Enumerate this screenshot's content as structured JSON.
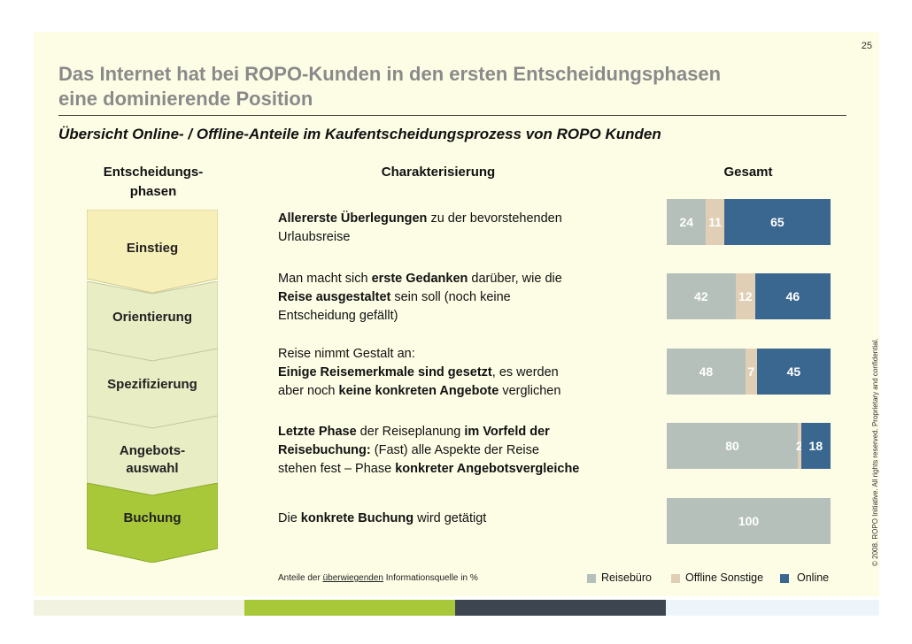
{
  "page_number": "25",
  "title_line1": "Das Internet hat bei ROPO-Kunden in den ersten Entscheidungsphasen",
  "title_line2": "eine dominierende Position",
  "subtitle": "Übersicht Online- / Offline-Anteile im Kaufentscheidungsprozess von ROPO Kunden",
  "headers": {
    "phases_line1": "Entscheidungs-",
    "phases_line2": "phasen",
    "characterization": "Charakterisierung",
    "total": "Gesamt"
  },
  "phases": [
    {
      "label_line1": "Einstieg",
      "label_line2": ""
    },
    {
      "label_line1": "Orientierung",
      "label_line2": ""
    },
    {
      "label_line1": "Spezifizierung",
      "label_line2": ""
    },
    {
      "label_line1": "Angebots-",
      "label_line2": "auswahl"
    },
    {
      "label_line1": "Buchung",
      "label_line2": ""
    }
  ],
  "descriptions": [
    {
      "l1_b": "Allererste Überlegungen",
      "l1_t": " zu der bevorstehenden",
      "l2_t": "Urlaubsreise"
    },
    {
      "l1_t": "Man macht sich ",
      "l1_b": "erste Gedanken",
      "l1_t2": " darüber, wie die",
      "l2_b": "Reise ausgestaltet",
      "l2_t": " sein soll (noch keine",
      "l3_t": "Entscheidung gefällt)"
    },
    {
      "l1_t": "Reise nimmt Gestalt an:",
      "l2_b": "Einige Reisemerkmale sind gesetzt",
      "l2_t": ", es werden",
      "l3_t": "aber noch ",
      "l3_b": "keine konkreten Angebote",
      "l3_t2": " verglichen"
    },
    {
      "l1_b": "Letzte Phase",
      "l1_t": " der Reiseplanung ",
      "l1_b2": "im Vorfeld der",
      "l2_b": "Reisebuchung:",
      "l2_t": " (Fast) alle Aspekte der Reise",
      "l3_t": "stehen fest – Phase ",
      "l3_b": "konkreter Angebotsvergleiche"
    },
    {
      "l1_t": "Die ",
      "l1_b": "konkrete Buchung",
      "l1_t2": " wird getätigt"
    }
  ],
  "chart_data": {
    "type": "bar",
    "orientation": "horizontal",
    "stacked": true,
    "title": "Gesamt",
    "categories": [
      "Einstieg",
      "Orientierung",
      "Spezifizierung",
      "Angebotsauswahl",
      "Buchung"
    ],
    "series": [
      {
        "name": "Reisebüro",
        "values": [
          24,
          42,
          48,
          80,
          100
        ],
        "color": "#b5c0bb"
      },
      {
        "name": "Offline Sonstige",
        "values": [
          11,
          12,
          7,
          2,
          0
        ],
        "color": "#e0cfb4"
      },
      {
        "name": "Online",
        "values": [
          65,
          46,
          45,
          18,
          0
        ],
        "color": "#3a6790"
      }
    ],
    "value_labels": [
      [
        "24",
        "11",
        "65"
      ],
      [
        "42",
        "12",
        "46"
      ],
      [
        "48",
        "7",
        "45"
      ],
      [
        "80",
        "2",
        "18"
      ],
      [
        "100",
        "",
        ""
      ]
    ],
    "unit": "%",
    "xlim": [
      0,
      100
    ]
  },
  "footnote": {
    "pre": "Anteile der ",
    "underlined": "überwiegenden",
    "post": " Informationsquelle in %"
  },
  "legend": [
    "Reisebüro",
    "Offline Sonstige",
    "Online"
  ],
  "copyright": "© 2008. ROPO Initiative. All rights reserved. Proprietary and confidential.",
  "colors": {
    "phase_light": "#f7efb8",
    "phase_mid": "#e8edc4",
    "phase_dark": "#a8c83a",
    "footer_green": "#a8c83a",
    "footer_navy": "#3d4650",
    "footer_light": "#eef5fa"
  }
}
